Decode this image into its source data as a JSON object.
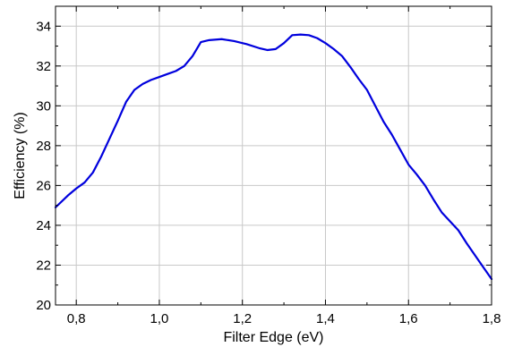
{
  "chart_data": {
    "type": "line",
    "title": "",
    "xlabel": "Filter Edge (eV)",
    "ylabel": "Efficiency (%)",
    "xlim": [
      0.75,
      1.8
    ],
    "ylim": [
      20,
      35
    ],
    "x_ticks": [
      "0,8",
      "1,0",
      "1,2",
      "1,4",
      "1,6",
      "1,8"
    ],
    "x_tick_values": [
      0.8,
      1.0,
      1.2,
      1.4,
      1.6,
      1.8
    ],
    "y_ticks": [
      "20",
      "22",
      "24",
      "26",
      "28",
      "30",
      "32",
      "34"
    ],
    "y_tick_values": [
      20,
      22,
      24,
      26,
      28,
      30,
      32,
      34
    ],
    "grid": true,
    "series": [
      {
        "color": "#0000dd",
        "x": [
          0.75,
          0.78,
          0.8,
          0.82,
          0.84,
          0.86,
          0.88,
          0.9,
          0.92,
          0.94,
          0.96,
          0.98,
          1.0,
          1.02,
          1.04,
          1.06,
          1.08,
          1.1,
          1.12,
          1.15,
          1.18,
          1.21,
          1.24,
          1.26,
          1.28,
          1.3,
          1.32,
          1.34,
          1.36,
          1.38,
          1.4,
          1.42,
          1.44,
          1.46,
          1.48,
          1.5,
          1.52,
          1.54,
          1.56,
          1.58,
          1.6,
          1.62,
          1.64,
          1.66,
          1.68,
          1.7,
          1.72,
          1.74,
          1.76,
          1.78,
          1.8
        ],
        "y": [
          24.9,
          25.5,
          25.85,
          26.15,
          26.65,
          27.45,
          28.35,
          29.25,
          30.2,
          30.8,
          31.1,
          31.3,
          31.45,
          31.6,
          31.75,
          32.0,
          32.5,
          33.2,
          33.3,
          33.35,
          33.25,
          33.1,
          32.9,
          32.8,
          32.85,
          33.15,
          33.55,
          33.58,
          33.55,
          33.4,
          33.15,
          32.85,
          32.5,
          31.95,
          31.35,
          30.8,
          30.0,
          29.2,
          28.55,
          27.8,
          27.05,
          26.55,
          26.0,
          25.3,
          24.65,
          24.2,
          23.75,
          23.1,
          22.5,
          21.9,
          21.3
        ]
      }
    ]
  }
}
